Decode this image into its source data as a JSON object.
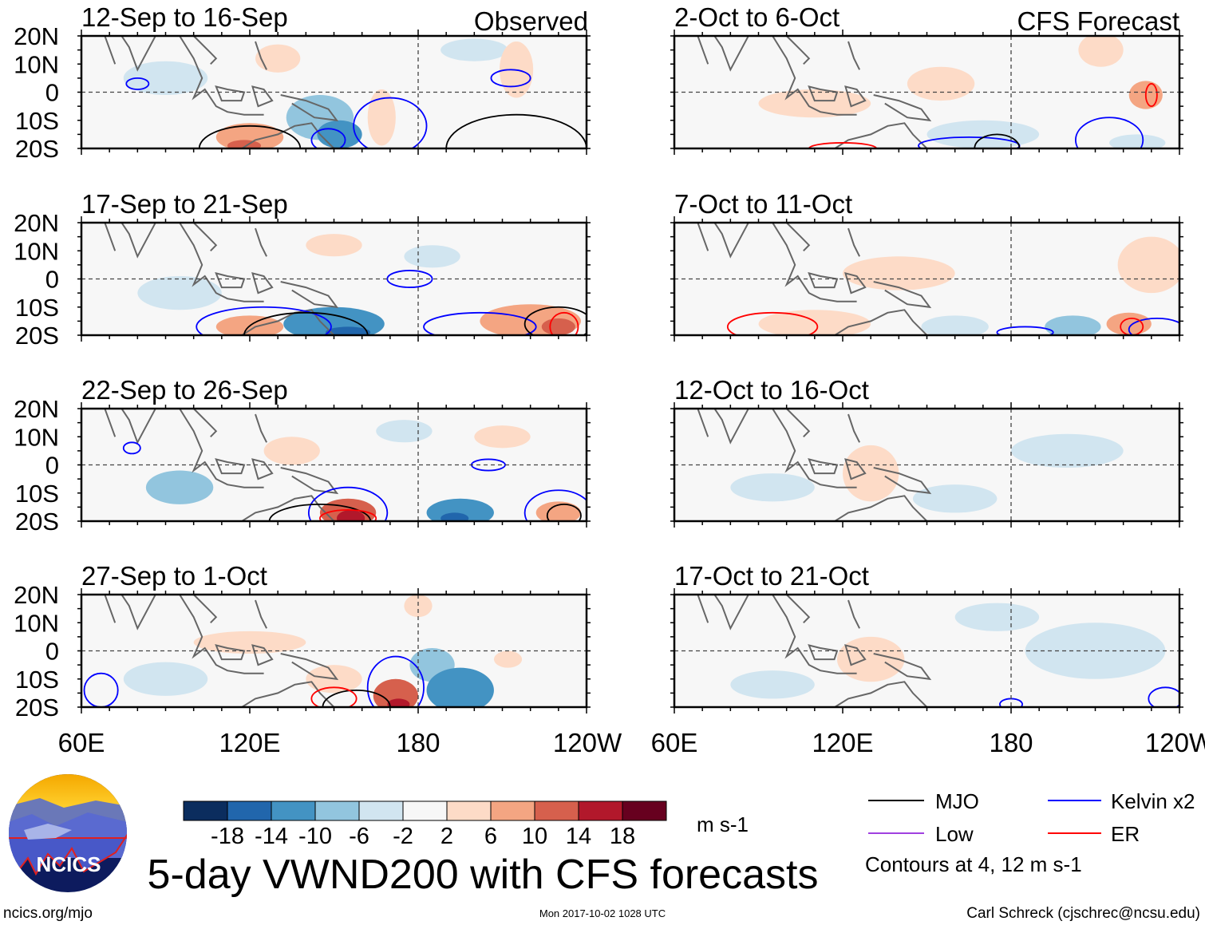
{
  "header": {
    "observed_label": "Observed",
    "forecast_label": "CFS Forecast"
  },
  "lat_labels": [
    "20N",
    "10N",
    "0",
    "10S",
    "20S"
  ],
  "lon_labels": [
    "60E",
    "120E",
    "180",
    "120W"
  ],
  "chart_data": {
    "type": "heatmap",
    "title": "5-day VWND200 with CFS forecasts",
    "units": "m s-1",
    "lon_range": [
      60,
      240
    ],
    "lat_range": [
      -20,
      20
    ],
    "panels": [
      {
        "title": "12-Sep to 16-Sep",
        "kind": "observed",
        "anomalies": [
          [
            145,
            -9,
            12,
            8,
            -8
          ],
          [
            152,
            -15,
            8,
            5,
            -12
          ],
          [
            120,
            -16,
            12,
            5,
            7
          ],
          [
            118,
            -19,
            6,
            2,
            12
          ],
          [
            167,
            -9,
            5,
            10,
            6
          ],
          [
            215,
            8,
            6,
            10,
            6
          ],
          [
            130,
            12,
            8,
            5,
            3
          ],
          [
            200,
            15,
            12,
            4,
            -4
          ],
          [
            90,
            5,
            15,
            6,
            -3
          ]
        ],
        "contours": [
          [
            "mjo",
            120,
            -20,
            18,
            8
          ],
          [
            "kelvin",
            170,
            -12,
            13,
            10
          ],
          [
            "kelvin",
            148,
            -17,
            6,
            4
          ],
          [
            "mjo",
            215,
            -20,
            25,
            12
          ],
          [
            "kelvin",
            213,
            5,
            7,
            3
          ],
          [
            "kelvin",
            80,
            3,
            4,
            2
          ]
        ]
      },
      {
        "title": "17-Sep to 21-Sep",
        "kind": "observed",
        "anomalies": [
          [
            150,
            -16,
            18,
            6,
            -10
          ],
          [
            155,
            -19,
            8,
            2,
            -16
          ],
          [
            120,
            -17,
            12,
            4,
            10
          ],
          [
            220,
            -15,
            18,
            6,
            8
          ],
          [
            230,
            -17,
            6,
            3,
            12
          ],
          [
            150,
            12,
            10,
            4,
            4
          ],
          [
            185,
            8,
            10,
            4,
            -4
          ],
          [
            95,
            -5,
            15,
            6,
            -3
          ]
        ],
        "contours": [
          [
            "kelvin",
            125,
            -17,
            24,
            7
          ],
          [
            "mjo",
            140,
            -20,
            22,
            8
          ],
          [
            "kelvin",
            202,
            -17,
            20,
            5
          ],
          [
            "kelvin",
            177,
            0,
            8,
            3
          ],
          [
            "mjo",
            230,
            -16,
            12,
            6
          ],
          [
            "er",
            232,
            -17,
            5,
            5
          ]
        ]
      },
      {
        "title": "22-Sep to 26-Sep",
        "kind": "observed",
        "anomalies": [
          [
            95,
            -8,
            12,
            6,
            -8
          ],
          [
            155,
            -17,
            10,
            5,
            12
          ],
          [
            156,
            -19,
            5,
            3,
            18
          ],
          [
            195,
            -17,
            12,
            5,
            -12
          ],
          [
            193,
            -19,
            5,
            2,
            -16
          ],
          [
            230,
            -17,
            8,
            4,
            10
          ],
          [
            135,
            5,
            10,
            5,
            4
          ],
          [
            210,
            10,
            10,
            4,
            4
          ],
          [
            175,
            12,
            10,
            4,
            -4
          ]
        ],
        "contours": [
          [
            "kelvin",
            155,
            -17,
            14,
            9
          ],
          [
            "mjo",
            145,
            -20,
            18,
            6
          ],
          [
            "kelvin",
            205,
            0,
            6,
            2
          ],
          [
            "kelvin",
            230,
            -17,
            12,
            8
          ],
          [
            "er",
            155,
            -19,
            10,
            3
          ],
          [
            "mjo",
            232,
            -18,
            6,
            4
          ],
          [
            "kelvin",
            78,
            6,
            3,
            2
          ]
        ]
      },
      {
        "title": "27-Sep to 1-Oct",
        "kind": "observed",
        "anomalies": [
          [
            172,
            -16,
            8,
            6,
            12
          ],
          [
            173,
            -19,
            4,
            2,
            18
          ],
          [
            195,
            -14,
            12,
            8,
            -10
          ],
          [
            185,
            -5,
            8,
            6,
            -6
          ],
          [
            150,
            -10,
            10,
            5,
            6
          ],
          [
            120,
            3,
            20,
            4,
            4
          ],
          [
            212,
            -3,
            5,
            3,
            6
          ],
          [
            180,
            16,
            5,
            4,
            6
          ],
          [
            90,
            -10,
            15,
            6,
            -4
          ]
        ],
        "contours": [
          [
            "kelvin",
            172,
            -13,
            10,
            11
          ],
          [
            "mjo",
            158,
            -20,
            12,
            6
          ],
          [
            "er",
            150,
            -17,
            8,
            4
          ],
          [
            "kelvin",
            67,
            -14,
            6,
            6
          ]
        ]
      },
      {
        "title": "2-Oct to 6-Oct",
        "kind": "forecast",
        "anomalies": [
          [
            228,
            -1,
            6,
            5,
            8
          ],
          [
            110,
            -4,
            20,
            5,
            3
          ],
          [
            155,
            3,
            12,
            6,
            3
          ],
          [
            212,
            15,
            8,
            6,
            3
          ],
          [
            170,
            -15,
            20,
            5,
            -3
          ],
          [
            225,
            -18,
            10,
            3,
            -4
          ]
        ],
        "contours": [
          [
            "kelvin",
            215,
            -17,
            12,
            8
          ],
          [
            "kelvin",
            165,
            -19,
            18,
            3
          ],
          [
            "mjo",
            175,
            -20,
            8,
            5
          ],
          [
            "er",
            230,
            -1,
            2,
            4
          ],
          [
            "er",
            120,
            -20,
            12,
            2
          ]
        ]
      },
      {
        "title": "7-Oct to 11-Oct",
        "kind": "forecast",
        "anomalies": [
          [
            140,
            2,
            20,
            6,
            3
          ],
          [
            110,
            -16,
            20,
            5,
            4
          ],
          [
            222,
            -16,
            8,
            4,
            8
          ],
          [
            202,
            -17,
            10,
            4,
            -8
          ],
          [
            160,
            -17,
            12,
            4,
            -4
          ],
          [
            230,
            5,
            12,
            10,
            3
          ]
        ],
        "contours": [
          [
            "er",
            95,
            -17,
            16,
            5
          ],
          [
            "kelvin",
            232,
            -18,
            10,
            4
          ],
          [
            "er",
            223,
            -17,
            4,
            3
          ],
          [
            "kelvin",
            185,
            -19,
            10,
            2
          ]
        ]
      },
      {
        "title": "12-Oct to 16-Oct",
        "kind": "forecast",
        "anomalies": [
          [
            130,
            -3,
            10,
            10,
            3
          ],
          [
            95,
            -8,
            15,
            5,
            -3
          ],
          [
            200,
            5,
            20,
            6,
            -3
          ],
          [
            160,
            -12,
            15,
            5,
            -3
          ]
        ],
        "contours": []
      },
      {
        "title": "17-Oct to 21-Oct",
        "kind": "forecast",
        "anomalies": [
          [
            130,
            -3,
            12,
            8,
            3
          ],
          [
            210,
            0,
            25,
            10,
            -3
          ],
          [
            175,
            12,
            15,
            5,
            -3
          ],
          [
            95,
            -12,
            15,
            5,
            -2
          ]
        ],
        "contours": [
          [
            "kelvin",
            235,
            -17,
            6,
            4
          ],
          [
            "kelvin",
            180,
            -19,
            4,
            2
          ]
        ]
      }
    ],
    "colorbar": {
      "ticks": [
        "-18",
        "-14",
        "-10",
        "-6",
        "-2",
        "2",
        "6",
        "10",
        "14",
        "18"
      ],
      "colors": [
        "#0b2d5e",
        "#2166ac",
        "#4393c3",
        "#92c5de",
        "#d1e5f0",
        "#f7f7f7",
        "#fddbc7",
        "#f4a582",
        "#d6604d",
        "#b2182b",
        "#67001f"
      ],
      "units": "m s-1"
    },
    "legend": {
      "items": [
        {
          "key": "mjo",
          "label": "MJO",
          "color": "#000000"
        },
        {
          "key": "kelvin",
          "label": "Kelvin x2",
          "color": "#0000ff"
        },
        {
          "key": "low",
          "label": "Low",
          "color": "#a040e0"
        },
        {
          "key": "er",
          "label": "ER",
          "color": "#ff0000"
        }
      ],
      "note": "Contours at 4, 12 m s-1"
    }
  },
  "logo": {
    "text": "NCICS"
  },
  "footer": {
    "url": "ncics.org/mjo",
    "timestamp": "Mon 2017-10-02 1028 UTC",
    "author": "Carl Schreck (cjschrec@ncsu.edu)"
  }
}
